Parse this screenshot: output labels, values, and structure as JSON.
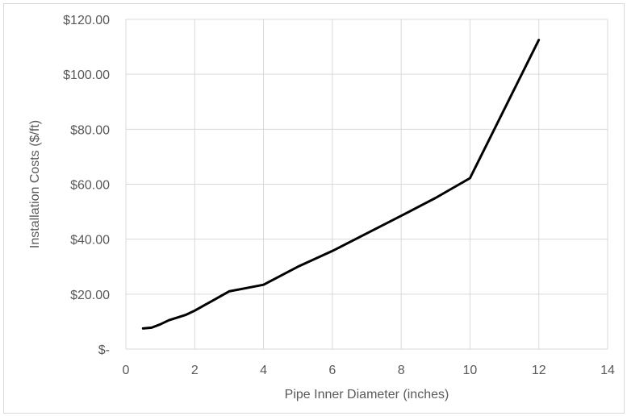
{
  "chart_data": {
    "type": "line",
    "title": "",
    "xlabel": "Pipe Inner Diameter (inches)",
    "ylabel": "Installation Costs ($/ft)",
    "xlim": [
      0,
      14
    ],
    "ylim": [
      0,
      120
    ],
    "x_ticks": [
      0,
      2,
      4,
      6,
      8,
      10,
      12,
      14
    ],
    "x_tick_labels": [
      "0",
      "2",
      "4",
      "6",
      "8",
      "10",
      "12",
      "14"
    ],
    "y_ticks": [
      0,
      20,
      40,
      60,
      80,
      100,
      120
    ],
    "y_tick_labels": [
      "$-",
      "$20.00",
      "$40.00",
      "$60.00",
      "$80.00",
      "$100.00",
      "$120.00"
    ],
    "grid": true,
    "legend": "none",
    "series_color": "#000000",
    "series": [
      {
        "x": [
          0.5,
          0.75,
          1.0,
          1.25,
          1.5,
          1.75,
          2.0,
          2.5,
          3.0,
          3.5,
          4.0,
          5.0,
          6.0,
          8.0,
          9.0,
          10.0,
          12.0
        ],
        "y": [
          7.5,
          7.8,
          9.0,
          10.5,
          11.5,
          12.5,
          14.0,
          17.5,
          21.0,
          22.2,
          23.4,
          30.0,
          35.7,
          48.5,
          55.0,
          62.2,
          112.5
        ]
      }
    ]
  }
}
